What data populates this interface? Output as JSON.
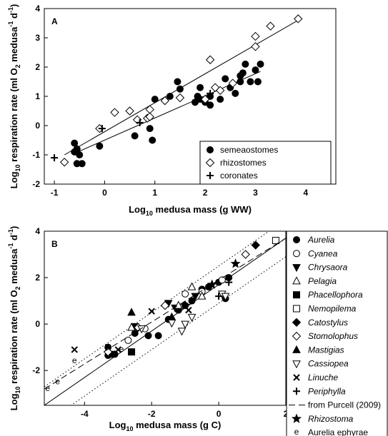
{
  "chart_data": [
    {
      "type": "scatter",
      "panel_label": "A",
      "x_label": [
        "Log",
        "10",
        " medusa mass (g WW)"
      ],
      "x_label_styles": [
        "base",
        "sub",
        "base"
      ],
      "y_label": [
        "Log",
        "10",
        " respiration rate (ml O",
        "2",
        " medusa",
        "-1",
        " d",
        "-1",
        ")"
      ],
      "y_label_styles": [
        "base",
        "sub",
        "base",
        "sub",
        "base",
        "sup",
        "base",
        "sup",
        "base"
      ],
      "xlim": [
        -1.2,
        4.6
      ],
      "ylim": [
        -2,
        4
      ],
      "xticks": [
        -1,
        0,
        1,
        2,
        3,
        4
      ],
      "yticks": [
        -2,
        -1,
        0,
        1,
        2,
        3,
        4
      ],
      "legend": "lower right",
      "series": [
        {
          "name": "semeaostomes",
          "marker": "circle",
          "filled": true,
          "x": [
            -0.6,
            -0.55,
            -0.6,
            -0.5,
            -0.55,
            -0.45,
            -0.1,
            0.6,
            0.9,
            0.95,
            1.0,
            1.3,
            1.45,
            1.5,
            1.8,
            1.85,
            1.9,
            1.9,
            2.0,
            2.1,
            2.1,
            2.3,
            2.4,
            2.5,
            2.6,
            2.7,
            2.7,
            2.75,
            2.8,
            2.9,
            3.0,
            3.05,
            3.1
          ],
          "values": [
            -0.6,
            -0.8,
            -0.9,
            -1.0,
            -1.3,
            -1.3,
            -0.7,
            -0.35,
            -0.1,
            -0.5,
            0.9,
            1.0,
            1.5,
            1.25,
            0.8,
            1.0,
            1.3,
            0.9,
            0.8,
            1.0,
            0.7,
            0.9,
            1.6,
            1.3,
            1.1,
            1.5,
            1.7,
            1.8,
            2.1,
            1.5,
            1.9,
            1.5,
            2.1
          ]
        },
        {
          "name": "rhizostomes",
          "marker": "diamond",
          "filled": false,
          "x": [
            -0.8,
            -0.1,
            0.2,
            0.5,
            0.65,
            0.85,
            0.9,
            0.9,
            1.2,
            1.5,
            2.0,
            2.1,
            2.2,
            2.3,
            2.55,
            3.0,
            3.0,
            3.3,
            3.85
          ],
          "values": [
            -1.25,
            -0.1,
            0.45,
            0.5,
            0.2,
            0.25,
            0.55,
            0.3,
            0.85,
            0.95,
            0.9,
            2.25,
            1.3,
            1.2,
            1.45,
            3.05,
            2.7,
            3.4,
            3.65
          ]
        },
        {
          "name": "coronates",
          "marker": "plus",
          "filled": true,
          "x": [
            -1.0,
            -0.05,
            0.7,
            2.1
          ],
          "values": [
            -1.1,
            -0.1,
            0.1,
            1.1
          ]
        }
      ],
      "fit_lines": [
        {
          "style": "solid",
          "x": [
            -0.6,
            3.1
          ],
          "values": [
            -0.95,
            1.85
          ]
        },
        {
          "style": "solid",
          "x": [
            -0.8,
            3.9
          ],
          "values": [
            -1.0,
            3.65
          ]
        }
      ]
    },
    {
      "type": "scatter",
      "panel_label": "B",
      "x_label": [
        "Log",
        "10",
        " medusa mass (g C)"
      ],
      "x_label_styles": [
        "base",
        "sub",
        "base"
      ],
      "y_label": [
        "Log",
        "10",
        " respiration rate (ml O",
        "2",
        " medusa",
        "-1",
        " d",
        "-1",
        ")"
      ],
      "y_label_styles": [
        "base",
        "sub",
        "base",
        "sub",
        "base",
        "sup",
        "base",
        "sup",
        "base"
      ],
      "xlim": [
        -5.2,
        2
      ],
      "ylim": [
        -3.5,
        4
      ],
      "xticks": [
        -4,
        -2,
        0,
        2
      ],
      "yticks": [
        -2,
        0,
        2,
        4
      ],
      "legend": "outside right",
      "series": [
        {
          "name": "Aurelia",
          "italic": true,
          "marker": "circle",
          "filled": true,
          "x": [
            -3.3,
            -3.2,
            -3.3,
            -3.1,
            -2.5,
            -2.1,
            -1.8,
            -1.5,
            -1.2,
            -1.0,
            -0.8,
            -0.5,
            -0.3,
            0.2,
            0.3,
            0.0
          ],
          "values": [
            -1.0,
            -1.3,
            -1.35,
            -1.3,
            -0.4,
            -0.5,
            -0.5,
            0.2,
            0.6,
            0.8,
            1.0,
            1.5,
            1.6,
            1.1,
            2.0,
            1.8
          ]
        },
        {
          "name": "Cyanea",
          "italic": true,
          "marker": "circle",
          "filled": false,
          "x": [
            -2.7,
            -2.2,
            -1.0,
            -0.5,
            0.1
          ],
          "values": [
            -0.7,
            -0.2,
            1.3,
            1.4,
            1.9
          ]
        },
        {
          "name": "Chrysaora",
          "italic": true,
          "marker": "tri-down",
          "filled": true,
          "x": [
            -2.5,
            -1.5,
            -1.3,
            -0.7
          ],
          "values": [
            -0.1,
            0.9,
            0.7,
            1.2
          ]
        },
        {
          "name": "Pelagia",
          "italic": true,
          "marker": "tri-up",
          "filled": false,
          "x": [
            -2.6,
            -1.2,
            -0.8,
            -0.5
          ],
          "values": [
            -0.15,
            0.8,
            1.6,
            1.2
          ]
        },
        {
          "name": "Phacellophora",
          "italic": true,
          "marker": "square",
          "filled": true,
          "x": [
            -2.6
          ],
          "values": [
            -1.2
          ]
        },
        {
          "name": "Nemopilema",
          "italic": true,
          "marker": "square",
          "filled": false,
          "x": [
            1.7
          ],
          "values": [
            3.6
          ]
        },
        {
          "name": "Catostylus",
          "italic": true,
          "marker": "diamond",
          "filled": true,
          "x": [
            1.1
          ],
          "values": [
            3.4
          ]
        },
        {
          "name": "Stomolophus",
          "italic": true,
          "marker": "diamond",
          "filled": false,
          "x": [
            -3.3,
            -2.4,
            -1.6,
            0.8
          ],
          "values": [
            -1.2,
            -0.15,
            0.8,
            3.0
          ]
        },
        {
          "name": "Mastigias",
          "italic": true,
          "marker": "tri-up",
          "filled": true,
          "x": [
            -2.6,
            -1.4
          ],
          "values": [
            0.5,
            0.3
          ]
        },
        {
          "name": "Cassiopea",
          "italic": true,
          "marker": "tri-down",
          "filled": false,
          "x": [
            -2.3,
            -1.4,
            -1.0,
            -0.8,
            0.1,
            0.2,
            -1.1
          ],
          "values": [
            -0.2,
            0.05,
            0.0,
            0.3,
            1.3,
            1.2,
            -0.3
          ]
        },
        {
          "name": "Linuche",
          "italic": true,
          "marker": "cross",
          "filled": true,
          "x": [
            -4.3,
            -3.0,
            -2.0,
            -0.9
          ],
          "values": [
            -1.1,
            -1.1,
            0.55,
            0.6
          ]
        },
        {
          "name": "Periphylla",
          "italic": true,
          "marker": "plus",
          "filled": true,
          "x": [
            0.0,
            0.3
          ],
          "values": [
            1.2,
            1.8
          ]
        },
        {
          "name": "from Purcell (2009)",
          "italic": false,
          "marker": "dashed-line",
          "x": [
            -5.2,
            2
          ],
          "values": [
            -2.8,
            3.7
          ]
        },
        {
          "name": "Rhizostoma",
          "italic": true,
          "marker": "star",
          "filled": true,
          "x": [
            0.5,
            -0.2,
            -1.0
          ],
          "values": [
            2.6,
            1.7,
            0.8
          ]
        },
        {
          "name": "Aurelia ephyrae",
          "italic": false,
          "marker": "e",
          "x": [
            -5.1,
            -4.8,
            -4.3,
            -2.9
          ],
          "values": [
            -2.8,
            -2.5,
            -1.6,
            -1.1
          ]
        }
      ],
      "fit_lines": [
        {
          "style": "solid",
          "x": [
            -5.2,
            2
          ],
          "values": [
            -3.5,
            3.7
          ]
        },
        {
          "style": "dotted",
          "x": [
            -5.2,
            2
          ],
          "values": [
            -2.7,
            4.5
          ]
        },
        {
          "style": "dotted",
          "x": [
            -5.2,
            2
          ],
          "values": [
            -4.3,
            2.9
          ]
        }
      ]
    }
  ]
}
